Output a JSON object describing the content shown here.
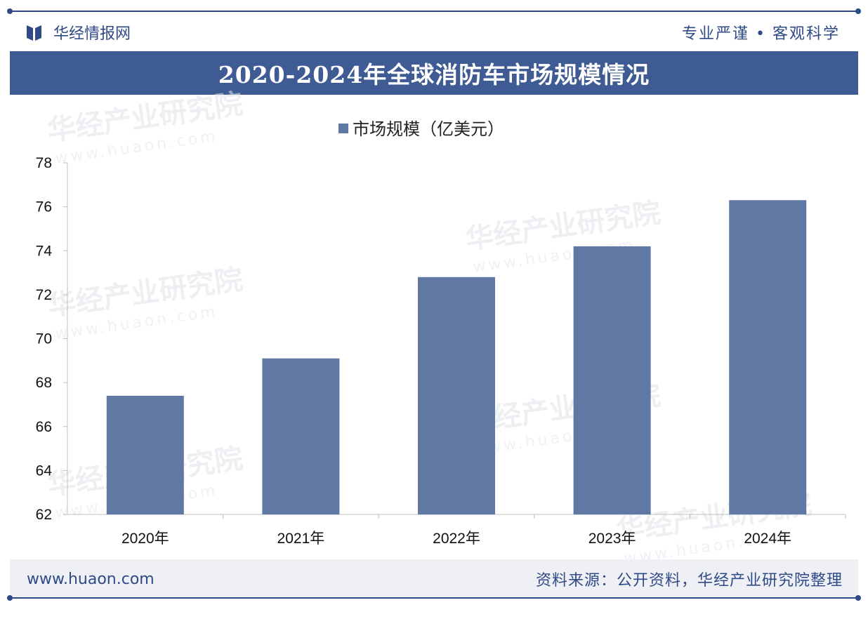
{
  "header": {
    "brand_name": "华经情报网",
    "slogan": "专业严谨 • 客观科学"
  },
  "watermark": {
    "text": "华经产业研究院",
    "url": "www.huaon.com"
  },
  "footer": {
    "website": "www.huaon.com",
    "source": "资料来源：公开资料，华经产业研究院整理"
  },
  "colors": {
    "brand": "#2f4a86",
    "title_bar": "#3f5b93",
    "bar": "#6079a4"
  },
  "chart_data": {
    "type": "bar",
    "title": "2020-2024年全球消防车市场规模情况",
    "categories": [
      "2020年",
      "2021年",
      "2022年",
      "2023年",
      "2024年"
    ],
    "series": [
      {
        "name": "市场规模（亿美元）",
        "values": [
          67.4,
          69.1,
          72.8,
          74.2,
          76.3
        ]
      }
    ],
    "ylim": [
      62,
      78
    ],
    "yticks": [
      62,
      64,
      66,
      68,
      70,
      72,
      74,
      76,
      78
    ],
    "xlabel": "",
    "ylabel": "",
    "legend_position": "top-center",
    "grid": false
  }
}
